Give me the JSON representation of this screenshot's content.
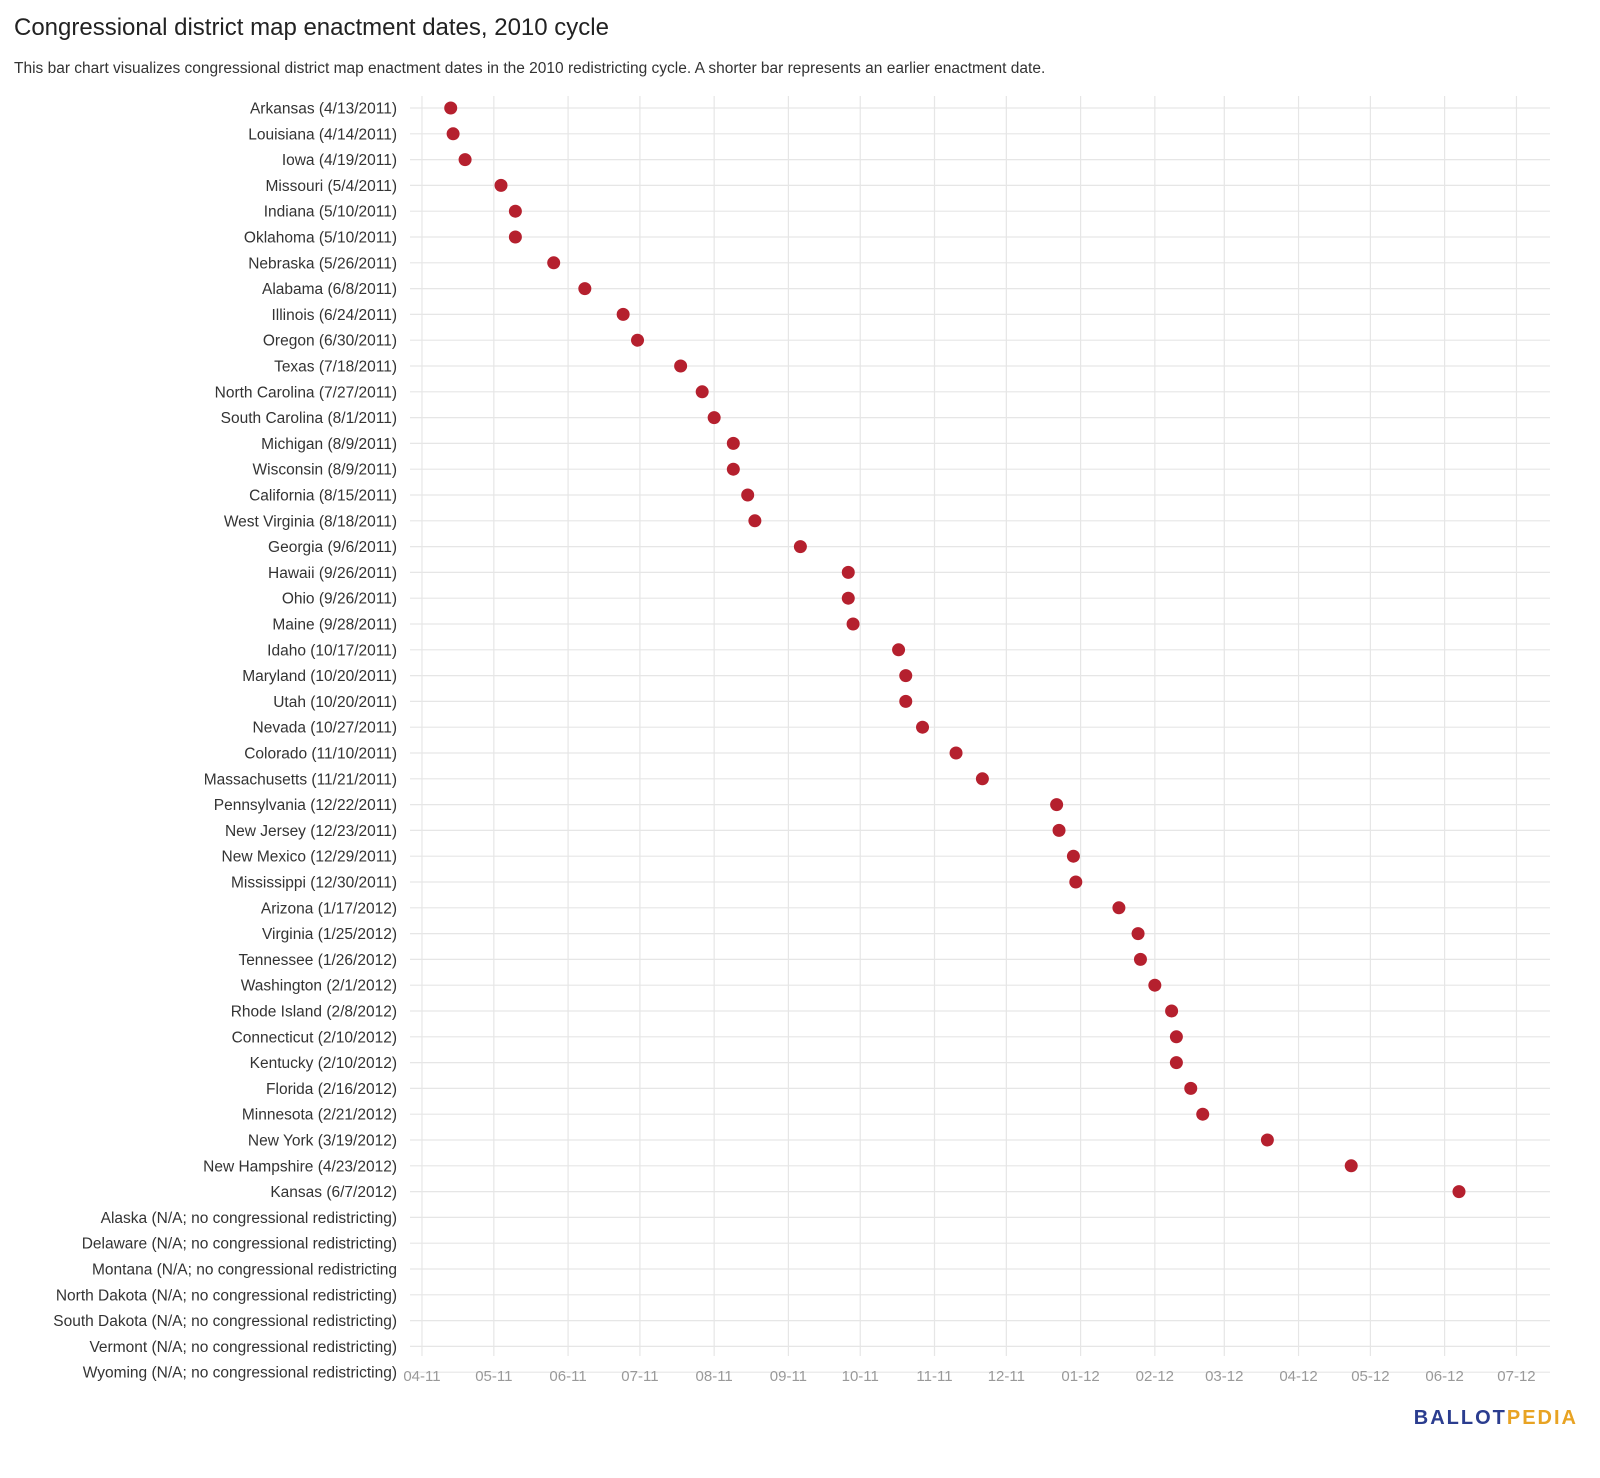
{
  "title": "Congressional district map enactment dates, 2010 cycle",
  "subtitle": "This bar chart visualizes congressional district map enactment dates in the 2010 redistricting cycle. A shorter bar represents an earlier enactment date.",
  "logo": {
    "part1": "BALLOT",
    "part2": "PEDIA"
  },
  "colors": {
    "point": "#b5202e",
    "grid": "#e6e6e6",
    "tick_text": "#999999",
    "label_text": "#333333"
  },
  "chart_data": {
    "type": "scatter",
    "title": "Congressional district map enactment dates, 2010 cycle",
    "xlabel": "",
    "ylabel": "",
    "x_axis_type": "date",
    "xlim": [
      "2011-03-27",
      "2012-07-15"
    ],
    "x_ticks": [
      {
        "label": "04-11",
        "date": "2011-04-01"
      },
      {
        "label": "05-11",
        "date": "2011-05-01"
      },
      {
        "label": "06-11",
        "date": "2011-06-01"
      },
      {
        "label": "07-11",
        "date": "2011-07-01"
      },
      {
        "label": "08-11",
        "date": "2011-08-01"
      },
      {
        "label": "09-11",
        "date": "2011-09-01"
      },
      {
        "label": "10-11",
        "date": "2011-10-01"
      },
      {
        "label": "11-11",
        "date": "2011-11-01"
      },
      {
        "label": "12-11",
        "date": "2011-12-01"
      },
      {
        "label": "01-12",
        "date": "2012-01-01"
      },
      {
        "label": "02-12",
        "date": "2012-02-01"
      },
      {
        "label": "03-12",
        "date": "2012-03-01"
      },
      {
        "label": "04-12",
        "date": "2012-04-01"
      },
      {
        "label": "05-12",
        "date": "2012-05-01"
      },
      {
        "label": "06-12",
        "date": "2012-06-01"
      },
      {
        "label": "07-12",
        "date": "2012-07-01"
      }
    ],
    "rows": [
      {
        "label": "Arkansas (4/13/2011)",
        "date": "2011-04-13"
      },
      {
        "label": "Louisiana (4/14/2011)",
        "date": "2011-04-14"
      },
      {
        "label": "Iowa (4/19/2011)",
        "date": "2011-04-19"
      },
      {
        "label": "Missouri (5/4/2011)",
        "date": "2011-05-04"
      },
      {
        "label": "Indiana (5/10/2011)",
        "date": "2011-05-10"
      },
      {
        "label": "Oklahoma (5/10/2011)",
        "date": "2011-05-10"
      },
      {
        "label": "Nebraska (5/26/2011)",
        "date": "2011-05-26"
      },
      {
        "label": "Alabama (6/8/2011)",
        "date": "2011-06-08"
      },
      {
        "label": "Illinois (6/24/2011)",
        "date": "2011-06-24"
      },
      {
        "label": "Oregon (6/30/2011)",
        "date": "2011-06-30"
      },
      {
        "label": "Texas (7/18/2011)",
        "date": "2011-07-18"
      },
      {
        "label": "North Carolina (7/27/2011)",
        "date": "2011-07-27"
      },
      {
        "label": "South Carolina (8/1/2011)",
        "date": "2011-08-01"
      },
      {
        "label": "Michigan (8/9/2011)",
        "date": "2011-08-09"
      },
      {
        "label": "Wisconsin (8/9/2011)",
        "date": "2011-08-09"
      },
      {
        "label": "California (8/15/2011)",
        "date": "2011-08-15"
      },
      {
        "label": "West Virginia (8/18/2011)",
        "date": "2011-08-18"
      },
      {
        "label": "Georgia (9/6/2011)",
        "date": "2011-09-06"
      },
      {
        "label": "Hawaii (9/26/2011)",
        "date": "2011-09-26"
      },
      {
        "label": "Ohio (9/26/2011)",
        "date": "2011-09-26"
      },
      {
        "label": "Maine (9/28/2011)",
        "date": "2011-09-28"
      },
      {
        "label": "Idaho (10/17/2011)",
        "date": "2011-10-17"
      },
      {
        "label": "Maryland (10/20/2011)",
        "date": "2011-10-20"
      },
      {
        "label": "Utah (10/20/2011)",
        "date": "2011-10-20"
      },
      {
        "label": "Nevada (10/27/2011)",
        "date": "2011-10-27"
      },
      {
        "label": "Colorado (11/10/2011)",
        "date": "2011-11-10"
      },
      {
        "label": "Massachusetts (11/21/2011)",
        "date": "2011-11-21"
      },
      {
        "label": "Pennsylvania (12/22/2011)",
        "date": "2011-12-22"
      },
      {
        "label": "New Jersey (12/23/2011)",
        "date": "2011-12-23"
      },
      {
        "label": "New Mexico (12/29/2011)",
        "date": "2011-12-29"
      },
      {
        "label": "Mississippi (12/30/2011)",
        "date": "2011-12-30"
      },
      {
        "label": "Arizona (1/17/2012)",
        "date": "2012-01-17"
      },
      {
        "label": "Virginia (1/25/2012)",
        "date": "2012-01-25"
      },
      {
        "label": "Tennessee (1/26/2012)",
        "date": "2012-01-26"
      },
      {
        "label": "Washington (2/1/2012)",
        "date": "2012-02-01"
      },
      {
        "label": "Rhode Island (2/8/2012)",
        "date": "2012-02-08"
      },
      {
        "label": "Connecticut (2/10/2012)",
        "date": "2012-02-10"
      },
      {
        "label": "Kentucky (2/10/2012)",
        "date": "2012-02-10"
      },
      {
        "label": "Florida (2/16/2012)",
        "date": "2012-02-16"
      },
      {
        "label": "Minnesota (2/21/2012)",
        "date": "2012-02-21"
      },
      {
        "label": "New York (3/19/2012)",
        "date": "2012-03-19"
      },
      {
        "label": "New Hampshire (4/23/2012)",
        "date": "2012-04-23"
      },
      {
        "label": "Kansas (6/7/2012)",
        "date": "2012-06-07"
      },
      {
        "label": "Alaska (N/A; no congressional redistricting)",
        "date": null
      },
      {
        "label": "Delaware (N/A; no congressional redistricting)",
        "date": null
      },
      {
        "label": "Montana (N/A; no congressional redistricting",
        "date": null
      },
      {
        "label": "North Dakota (N/A; no congressional redistricting)",
        "date": null
      },
      {
        "label": "South Dakota (N/A; no congressional redistricting)",
        "date": null
      },
      {
        "label": "Vermont (N/A; no congressional redistricting)",
        "date": null
      },
      {
        "label": "Wyoming (N/A; no congressional redistricting)",
        "date": null
      }
    ]
  }
}
